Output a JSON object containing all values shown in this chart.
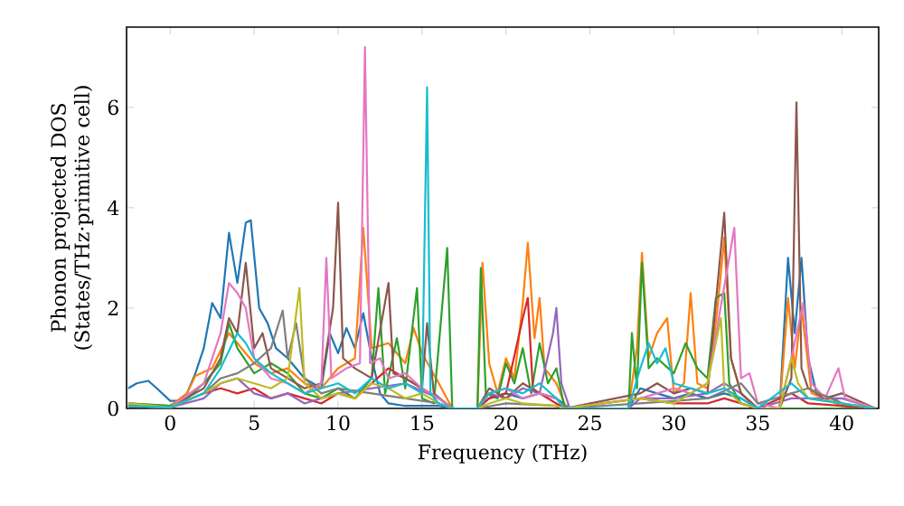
{
  "chart_data": {
    "type": "line",
    "xlabel": "Frequency (THz)",
    "ylabel": "Phonon projected DOS (States/THz·primitive cell)",
    "xlim": [
      -2.6,
      42.2
    ],
    "ylim": [
      0,
      7.6
    ],
    "xticks": [
      0,
      5,
      10,
      15,
      20,
      25,
      30,
      35,
      40
    ],
    "yticks": [
      0,
      2,
      4,
      6
    ],
    "series": [
      {
        "color": "#1f77b4",
        "x": [
          -2.5,
          -2,
          -1.3,
          -0.8,
          0,
          0.5,
          1,
          1.5,
          2,
          2.5,
          3,
          3.5,
          4,
          4.5,
          4.8,
          5.3,
          5.8,
          6.3,
          7,
          8,
          9,
          9.5,
          10,
          10.5,
          11,
          11.5,
          12,
          12.5,
          13,
          14,
          15,
          16,
          17,
          18.3,
          19,
          20,
          21,
          22,
          23,
          23.8,
          27.3,
          28,
          29,
          30,
          31,
          32,
          33,
          34,
          35,
          36.3,
          36.8,
          37.2,
          37.6,
          38,
          38.5,
          39.5,
          40.5,
          42
        ],
        "values": [
          0.4,
          0.5,
          0.55,
          0.4,
          0.15,
          0.15,
          0.3,
          0.7,
          1.2,
          2.1,
          1.8,
          3.5,
          2.5,
          3.7,
          3.75,
          2.0,
          1.7,
          1.2,
          1.0,
          0.6,
          0.4,
          1.5,
          1.1,
          1.6,
          1.2,
          1.9,
          1.0,
          0.3,
          0.1,
          0.05,
          0.05,
          0.05,
          0,
          0,
          0.2,
          0.3,
          0.2,
          0.3,
          0.2,
          0,
          0,
          0.4,
          0.3,
          0.2,
          0.3,
          0.2,
          0.3,
          0.2,
          0,
          0,
          3.0,
          1.5,
          3.0,
          1.0,
          0.3,
          0.2,
          0,
          0
        ]
      },
      {
        "color": "#ff7f0e",
        "x": [
          -2.5,
          0,
          1,
          1.5,
          2.5,
          3.5,
          4,
          4.5,
          5,
          6,
          7,
          8,
          9,
          10,
          11,
          11.5,
          12,
          13,
          14,
          14.5,
          15,
          16,
          16.8,
          18.3,
          18.6,
          19,
          19.5,
          20,
          20.5,
          21,
          21.3,
          21.7,
          22,
          22.3,
          23,
          23.6,
          27.3,
          27.8,
          28.1,
          28.5,
          29,
          29.6,
          30,
          30.6,
          31,
          31.4,
          32,
          32.6,
          33,
          33.4,
          34,
          35,
          36.3,
          36.8,
          37.2,
          37.6,
          38.2,
          40,
          42
        ],
        "values": [
          0.1,
          0.05,
          0.3,
          0.65,
          0.8,
          1.5,
          1.3,
          1.1,
          0.9,
          0.7,
          0.8,
          0.5,
          0.4,
          0.8,
          1.0,
          3.6,
          1.2,
          1.3,
          0.9,
          1.6,
          1.1,
          0.5,
          0,
          0,
          2.9,
          0.9,
          0.3,
          1.0,
          0.6,
          2.1,
          3.3,
          1.4,
          2.2,
          0.8,
          0.5,
          0,
          0,
          1.2,
          3.1,
          1.0,
          1.5,
          1.8,
          0.3,
          0.5,
          2.3,
          0.5,
          0.4,
          2.0,
          3.4,
          1.0,
          0.3,
          0,
          0,
          2.2,
          0.8,
          2.0,
          0.3,
          0.05,
          0
        ]
      },
      {
        "color": "#2ca02c",
        "x": [
          -2.5,
          0,
          1,
          2,
          3,
          3.5,
          4,
          5,
          6,
          7,
          8,
          9,
          10,
          11,
          12,
          12.4,
          12.8,
          13.5,
          14,
          14.7,
          15,
          15.7,
          16.5,
          16.8,
          18.3,
          18.5,
          18.8,
          19.5,
          20,
          20.5,
          21,
          21.5,
          22,
          22.5,
          23,
          23.5,
          27.3,
          27.5,
          27.8,
          28.1,
          28.5,
          29,
          30,
          30.7,
          31.4,
          32,
          32.5,
          33,
          33.3,
          34,
          35,
          42
        ],
        "values": [
          0.1,
          0.05,
          0.2,
          0.5,
          0.9,
          1.7,
          1.2,
          0.7,
          0.9,
          0.7,
          0.3,
          0.2,
          0.4,
          0.2,
          0.6,
          2.4,
          0.3,
          1.4,
          0.4,
          2.4,
          0.2,
          0.1,
          3.2,
          0,
          0,
          2.8,
          0.3,
          0.2,
          0.9,
          0.5,
          1.2,
          0.3,
          1.3,
          0.5,
          0.8,
          0,
          0,
          1.5,
          0.4,
          2.9,
          0.8,
          1.0,
          0.7,
          1.3,
          0.8,
          0.6,
          2.2,
          2.3,
          0.5,
          0.1,
          0,
          0
        ]
      },
      {
        "color": "#d62728",
        "x": [
          -2.5,
          0,
          2,
          3,
          4,
          5,
          6,
          7,
          8,
          9,
          10,
          11,
          12,
          13,
          14,
          15,
          16,
          16.8,
          18.3,
          19,
          20,
          21,
          21.3,
          21.6,
          22,
          23,
          23.5,
          28,
          30,
          32,
          33,
          35,
          37,
          38,
          42
        ],
        "values": [
          0.05,
          0.02,
          0.3,
          0.4,
          0.3,
          0.4,
          0.2,
          0.3,
          0.2,
          0.1,
          0.3,
          0.2,
          0.5,
          0.8,
          0.6,
          0.4,
          0.2,
          0,
          0,
          0.2,
          0.3,
          1.8,
          2.2,
          0.4,
          0.3,
          0.1,
          0,
          0.2,
          0.1,
          0.1,
          0.2,
          0,
          0.3,
          0.1,
          0
        ]
      },
      {
        "color": "#9467bd",
        "x": [
          -2.5,
          0,
          2,
          3,
          4,
          5,
          6,
          7,
          8,
          9,
          10,
          12,
          14,
          16,
          16.8,
          18.3,
          19,
          20,
          21,
          22,
          22.8,
          23,
          23.3,
          23.8,
          27.3,
          28,
          30,
          32,
          33,
          34,
          35,
          37,
          40,
          42
        ],
        "values": [
          0.05,
          0.02,
          0.2,
          0.5,
          0.6,
          0.3,
          0.2,
          0.3,
          0.1,
          0.2,
          0.3,
          0.4,
          0.5,
          0.2,
          0,
          0,
          0.3,
          0.2,
          0.4,
          0.3,
          1.5,
          2.0,
          0.5,
          0,
          0,
          0.2,
          0.2,
          0.3,
          0.5,
          0.3,
          0,
          0.2,
          0.2,
          0
        ]
      },
      {
        "color": "#8c564b",
        "x": [
          -2.5,
          0,
          2,
          3,
          3.5,
          4,
          4.5,
          5,
          5.5,
          6,
          7,
          8,
          9,
          9.7,
          10,
          10.3,
          11,
          12,
          13,
          13.3,
          14,
          15,
          15.3,
          15.7,
          16.8,
          18.3,
          19,
          20,
          21,
          22,
          23,
          23.5,
          28,
          29,
          30,
          31,
          32,
          33,
          33.4,
          34,
          35,
          36.3,
          37,
          37.3,
          37.6,
          38,
          39,
          40,
          42
        ],
        "values": [
          0.05,
          0.02,
          0.4,
          1.0,
          1.8,
          1.5,
          2.9,
          1.2,
          1.5,
          0.8,
          0.6,
          0.4,
          0.5,
          2.0,
          4.1,
          1.0,
          0.8,
          0.6,
          2.5,
          0.7,
          0.6,
          0.4,
          1.7,
          0.3,
          0,
          0,
          0.4,
          0.2,
          0.5,
          0.3,
          0.2,
          0,
          0.3,
          0.5,
          0.3,
          0.4,
          0.3,
          3.9,
          1.0,
          0.3,
          0,
          0,
          0.6,
          6.1,
          0.8,
          0.4,
          0.2,
          0.3,
          0
        ]
      },
      {
        "color": "#e377c2",
        "x": [
          -2.5,
          0,
          2,
          3,
          3.5,
          4,
          4.5,
          5,
          6,
          7,
          8,
          9,
          9.3,
          9.6,
          10.5,
          11.3,
          11.6,
          11.9,
          12.5,
          13,
          14,
          15,
          16,
          16.8,
          18.3,
          19,
          20,
          21,
          22,
          23,
          23.5,
          28,
          29,
          30,
          31,
          32,
          33.3,
          33.6,
          34,
          34.5,
          35,
          36.3,
          37,
          37.7,
          38.2,
          39,
          39.8,
          40.2,
          42
        ],
        "values": [
          0.05,
          0.02,
          0.5,
          1.5,
          2.5,
          2.3,
          2.0,
          1.0,
          0.6,
          0.5,
          0.3,
          0.5,
          3.0,
          0.6,
          0.8,
          0.9,
          7.2,
          0.9,
          1.0,
          0.6,
          0.7,
          0.4,
          0.2,
          0,
          0,
          0.3,
          0.4,
          0.2,
          0.3,
          0.2,
          0,
          0.2,
          0.3,
          0.4,
          0.3,
          0.5,
          3.0,
          3.6,
          0.6,
          0.7,
          0.1,
          0,
          1.0,
          2.1,
          0.5,
          0.2,
          0.8,
          0.2,
          0
        ]
      },
      {
        "color": "#7f7f7f",
        "x": [
          -2.5,
          0,
          2,
          3,
          4,
          5,
          6,
          6.7,
          7,
          7.5,
          8,
          9,
          10,
          12,
          14,
          16,
          16.8,
          18.3,
          20,
          23,
          23.5,
          28,
          32,
          34,
          35,
          37,
          38,
          40,
          42
        ],
        "values": [
          0.05,
          0.02,
          0.3,
          0.6,
          0.7,
          0.9,
          1.2,
          1.95,
          1.0,
          1.7,
          0.6,
          0.3,
          0.4,
          0.3,
          0.2,
          0.1,
          0,
          0,
          0.1,
          0.05,
          0,
          0.1,
          0.2,
          0.5,
          0.1,
          0.3,
          0.4,
          0.1,
          0
        ]
      },
      {
        "color": "#bcbd22",
        "x": [
          -2.5,
          0,
          2,
          3,
          4,
          5,
          6,
          7,
          7.7,
          8,
          9,
          10,
          11,
          12,
          13,
          14,
          15,
          16,
          16.8,
          18.3,
          19,
          20,
          21,
          23,
          23.5,
          28,
          30,
          32,
          32.8,
          33,
          34,
          35,
          36.3,
          37,
          37.4,
          38,
          40,
          42
        ],
        "values": [
          0.1,
          0.02,
          0.3,
          0.5,
          0.6,
          0.5,
          0.4,
          0.6,
          2.4,
          0.5,
          0.2,
          0.3,
          0.2,
          0.5,
          0.4,
          0.2,
          0.3,
          0.1,
          0,
          0,
          0.1,
          0.2,
          0.1,
          0.05,
          0,
          0.2,
          0.1,
          0.5,
          1.8,
          0.4,
          0.1,
          0,
          0,
          1.0,
          0.5,
          0.2,
          0.1,
          0
        ]
      },
      {
        "color": "#17becf",
        "x": [
          -2.5,
          0,
          2,
          3,
          4,
          4.5,
          5,
          6,
          7,
          8,
          9,
          10,
          11,
          12,
          13,
          14,
          15,
          15.3,
          15.5,
          16,
          16.8,
          18.3,
          19,
          20,
          21,
          22,
          23,
          23.5,
          27.3,
          28,
          28.5,
          29,
          29.5,
          30,
          31,
          32,
          33,
          34,
          35,
          37,
          38,
          42
        ],
        "values": [
          0.05,
          0.02,
          0.3,
          0.8,
          1.5,
          1.3,
          1.0,
          0.7,
          0.5,
          0.3,
          0.4,
          0.5,
          0.3,
          0.6,
          0.4,
          0.5,
          0.3,
          6.4,
          0.3,
          0.1,
          0,
          0,
          0.3,
          0.4,
          0.3,
          0.5,
          0.2,
          0,
          0,
          0.8,
          1.3,
          0.9,
          1.2,
          0.5,
          0.4,
          0.3,
          0.4,
          0.2,
          0,
          0.5,
          0.2,
          0
        ]
      }
    ]
  }
}
